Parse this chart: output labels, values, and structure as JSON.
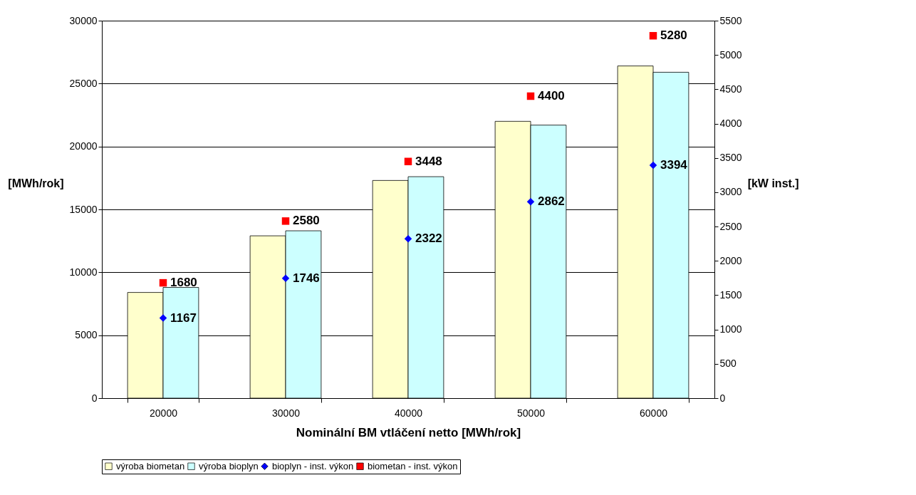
{
  "chart_data": {
    "type": "bar",
    "xlabel": "Nominální BM vtláčení netto [MWh/rok]",
    "ylabel": "[MWh/rok]",
    "y2label": "[kW inst.]",
    "categories": [
      "20000",
      "30000",
      "40000",
      "50000",
      "60000"
    ],
    "series": [
      {
        "name": "výroba biometan",
        "color": "#ffffcc",
        "values": [
          8400,
          12900,
          17300,
          22000,
          26400
        ]
      },
      {
        "name": "výroba bioplyn",
        "color": "#ccffff",
        "values": [
          8800,
          13300,
          17600,
          21700,
          25900
        ]
      },
      {
        "name": "bioplyn - inst. výkon",
        "type": "scatter",
        "axis": "y2",
        "marker": "diamond",
        "color": "#0000ff",
        "values": [
          1167,
          1746,
          2322,
          2862,
          3394
        ],
        "value_labels": [
          "1167",
          "1746",
          "2322",
          "2862",
          "3394"
        ]
      },
      {
        "name": "biometan - inst. výkon",
        "type": "scatter",
        "axis": "y2",
        "marker": "square",
        "color": "#ff0000",
        "values": [
          1680,
          2580,
          3448,
          4400,
          5280
        ],
        "value_labels": [
          "1680",
          "2580",
          "3448",
          "4400",
          "5280"
        ]
      }
    ],
    "ylim": [
      0,
      30000
    ],
    "yticks": [
      0,
      5000,
      10000,
      15000,
      20000,
      25000,
      30000
    ],
    "y2lim": [
      0,
      5500
    ],
    "y2ticks": [
      0,
      500,
      1000,
      1500,
      2000,
      2500,
      3000,
      3500,
      4000,
      4500,
      5000,
      5500
    ],
    "grid": "y",
    "legend": "bottom"
  }
}
